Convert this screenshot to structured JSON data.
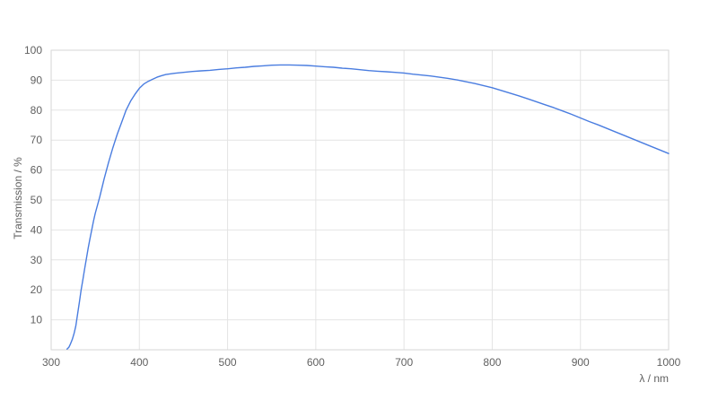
{
  "chart_data": {
    "type": "line",
    "title": "",
    "xlabel": "λ / nm",
    "ylabel": "Transmission / %",
    "xlim": [
      300,
      1000
    ],
    "ylim": [
      0,
      100
    ],
    "xticks": [
      300,
      400,
      500,
      600,
      700,
      800,
      900,
      1000
    ],
    "yticks": [
      10,
      20,
      30,
      40,
      50,
      60,
      70,
      80,
      90,
      100
    ],
    "grid": true,
    "legend_position": "none",
    "series": [
      {
        "name": "Transmission",
        "color": "#4a7de0",
        "points": [
          [
            318,
            0.2
          ],
          [
            320,
            0.8
          ],
          [
            322,
            2
          ],
          [
            324,
            3.5
          ],
          [
            326,
            5.5
          ],
          [
            328,
            8
          ],
          [
            330,
            12
          ],
          [
            332,
            16
          ],
          [
            334,
            20
          ],
          [
            336,
            23.5
          ],
          [
            338,
            27
          ],
          [
            340,
            30.5
          ],
          [
            342,
            34
          ],
          [
            344,
            37
          ],
          [
            346,
            40
          ],
          [
            348,
            43
          ],
          [
            350,
            45.5
          ],
          [
            355,
            51
          ],
          [
            360,
            57
          ],
          [
            365,
            62.5
          ],
          [
            370,
            67.5
          ],
          [
            375,
            72
          ],
          [
            380,
            76
          ],
          [
            385,
            80
          ],
          [
            390,
            83
          ],
          [
            395,
            85.3
          ],
          [
            400,
            87.3
          ],
          [
            405,
            88.7
          ],
          [
            410,
            89.6
          ],
          [
            415,
            90.3
          ],
          [
            420,
            91
          ],
          [
            425,
            91.5
          ],
          [
            430,
            91.9
          ],
          [
            440,
            92.3
          ],
          [
            450,
            92.6
          ],
          [
            460,
            92.9
          ],
          [
            470,
            93.1
          ],
          [
            480,
            93.3
          ],
          [
            490,
            93.6
          ],
          [
            500,
            93.8
          ],
          [
            510,
            94.1
          ],
          [
            520,
            94.3
          ],
          [
            530,
            94.6
          ],
          [
            540,
            94.8
          ],
          [
            550,
            95
          ],
          [
            560,
            95.1
          ],
          [
            570,
            95.1
          ],
          [
            580,
            95
          ],
          [
            590,
            94.9
          ],
          [
            600,
            94.7
          ],
          [
            610,
            94.5
          ],
          [
            620,
            94.3
          ],
          [
            630,
            94
          ],
          [
            640,
            93.8
          ],
          [
            650,
            93.5
          ],
          [
            660,
            93.2
          ],
          [
            670,
            93
          ],
          [
            680,
            92.8
          ],
          [
            690,
            92.6
          ],
          [
            700,
            92.4
          ],
          [
            710,
            92
          ],
          [
            720,
            91.7
          ],
          [
            730,
            91.4
          ],
          [
            740,
            91
          ],
          [
            750,
            90.6
          ],
          [
            760,
            90.1
          ],
          [
            770,
            89.5
          ],
          [
            780,
            88.9
          ],
          [
            790,
            88.2
          ],
          [
            800,
            87.5
          ],
          [
            810,
            86.6
          ],
          [
            820,
            85.7
          ],
          [
            830,
            84.8
          ],
          [
            840,
            83.8
          ],
          [
            850,
            82.8
          ],
          [
            860,
            81.8
          ],
          [
            870,
            80.8
          ],
          [
            880,
            79.7
          ],
          [
            890,
            78.6
          ],
          [
            900,
            77.4
          ],
          [
            910,
            76.2
          ],
          [
            920,
            75.1
          ],
          [
            930,
            73.9
          ],
          [
            940,
            72.7
          ],
          [
            950,
            71.5
          ],
          [
            960,
            70.3
          ],
          [
            970,
            69.1
          ],
          [
            980,
            67.9
          ],
          [
            990,
            66.7
          ],
          [
            1000,
            65.5
          ]
        ]
      }
    ]
  },
  "styles": {
    "background": "#ffffff",
    "grid_color": "#e4e4e4",
    "border_color": "#d6d6d6",
    "tick_label_color": "#616161",
    "line_color": "#4a7de0"
  }
}
